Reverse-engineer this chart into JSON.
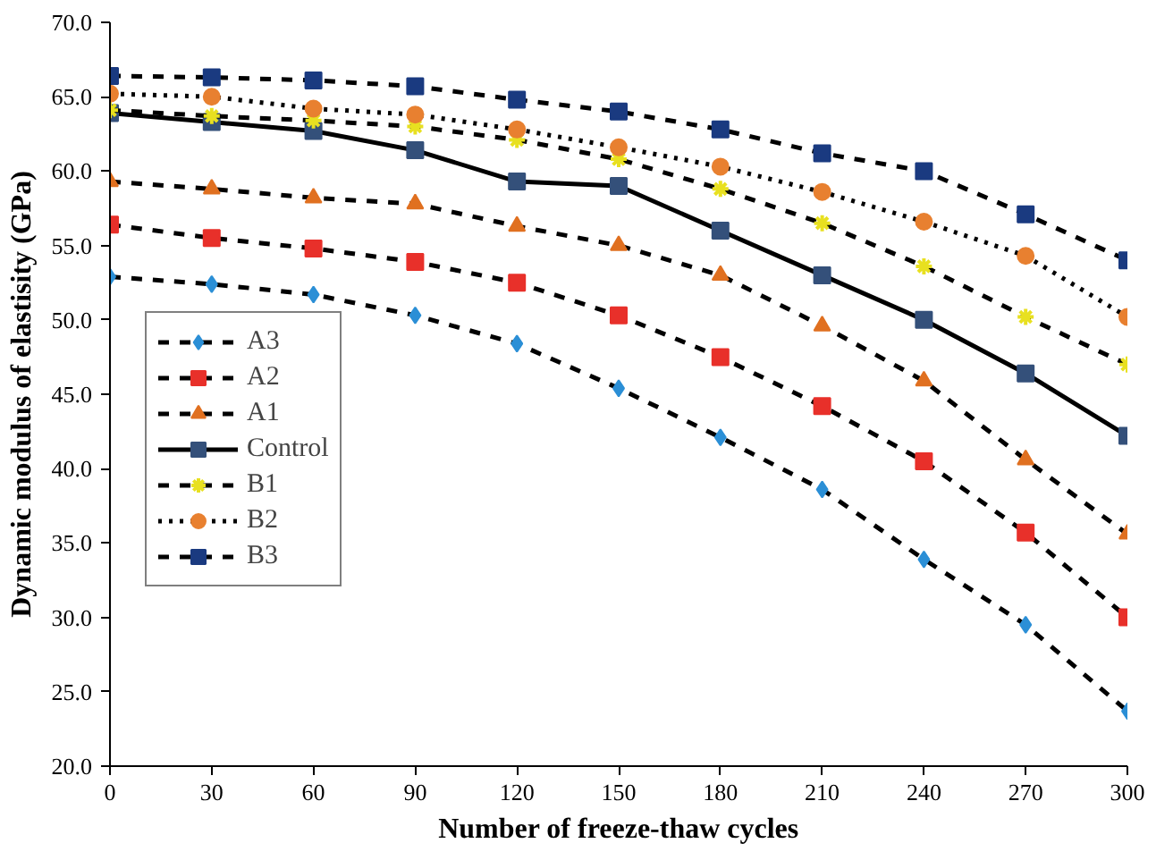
{
  "chart_data": {
    "type": "line",
    "xlabel": "Number of freeze-thaw cycles",
    "ylabel": "Dynamic modulus of elastisity (GPa)",
    "x": [
      0,
      30,
      60,
      90,
      120,
      150,
      180,
      210,
      240,
      270,
      300
    ],
    "xlim": [
      0,
      300
    ],
    "xticks": [
      0,
      30,
      60,
      90,
      120,
      150,
      180,
      210,
      240,
      270,
      300
    ],
    "ylim": [
      20,
      70
    ],
    "yticks": [
      {
        "value": 20,
        "label": "20.0"
      },
      {
        "value": 25,
        "label": "25.0"
      },
      {
        "value": 30,
        "label": "30.0"
      },
      {
        "value": 35,
        "label": "35.0"
      },
      {
        "value": 40,
        "label": "40.0"
      },
      {
        "value": 45,
        "label": "45.0"
      },
      {
        "value": 50,
        "label": "50.0"
      },
      {
        "value": 55,
        "label": "55.0"
      },
      {
        "value": 60,
        "label": "60.0"
      },
      {
        "value": 65,
        "label": "65.0"
      },
      {
        "value": 70,
        "label": "70.0"
      }
    ],
    "grid": false,
    "legend": "left",
    "series": [
      {
        "name": "A3",
        "color": "#2b8fd6",
        "marker": "diamond",
        "line_style": "dashed",
        "values": [
          52.9,
          52.4,
          51.7,
          50.3,
          48.4,
          45.4,
          42.1,
          38.6,
          33.9,
          29.5,
          23.7
        ]
      },
      {
        "name": "A2",
        "color": "#e8302a",
        "marker": "square",
        "line_style": "dashed",
        "values": [
          56.4,
          55.5,
          54.8,
          53.9,
          52.5,
          50.3,
          47.5,
          44.2,
          40.5,
          35.7,
          30.0
        ]
      },
      {
        "name": "A1",
        "color": "#e07020",
        "marker": "triangle",
        "line_style": "dashed",
        "values": [
          59.3,
          58.8,
          58.2,
          57.8,
          56.3,
          55.0,
          53.0,
          49.6,
          45.9,
          40.6,
          35.6
        ]
      },
      {
        "name": "Control",
        "color": "#34507a",
        "marker": "square",
        "line_style": "solid",
        "values": [
          63.9,
          63.3,
          62.7,
          61.4,
          59.3,
          59.0,
          56.0,
          53.0,
          50.0,
          46.4,
          42.2
        ]
      },
      {
        "name": "B1",
        "color": "#e8e020",
        "marker": "cross",
        "line_style": "dashed",
        "values": [
          64.1,
          63.7,
          63.4,
          63.0,
          62.1,
          60.8,
          58.8,
          56.5,
          53.6,
          50.2,
          47.0
        ]
      },
      {
        "name": "B2",
        "color": "#e88030",
        "marker": "circle",
        "line_style": "dotted",
        "values": [
          65.2,
          65.0,
          64.2,
          63.8,
          62.8,
          61.6,
          60.3,
          58.6,
          56.6,
          54.3,
          50.2
        ]
      },
      {
        "name": "B3",
        "color": "#1a3a80",
        "marker": "square",
        "line_style": "dashed",
        "values": [
          66.4,
          66.3,
          66.1,
          65.7,
          64.8,
          64.0,
          62.8,
          61.2,
          60.0,
          57.1,
          54.0
        ]
      }
    ]
  }
}
